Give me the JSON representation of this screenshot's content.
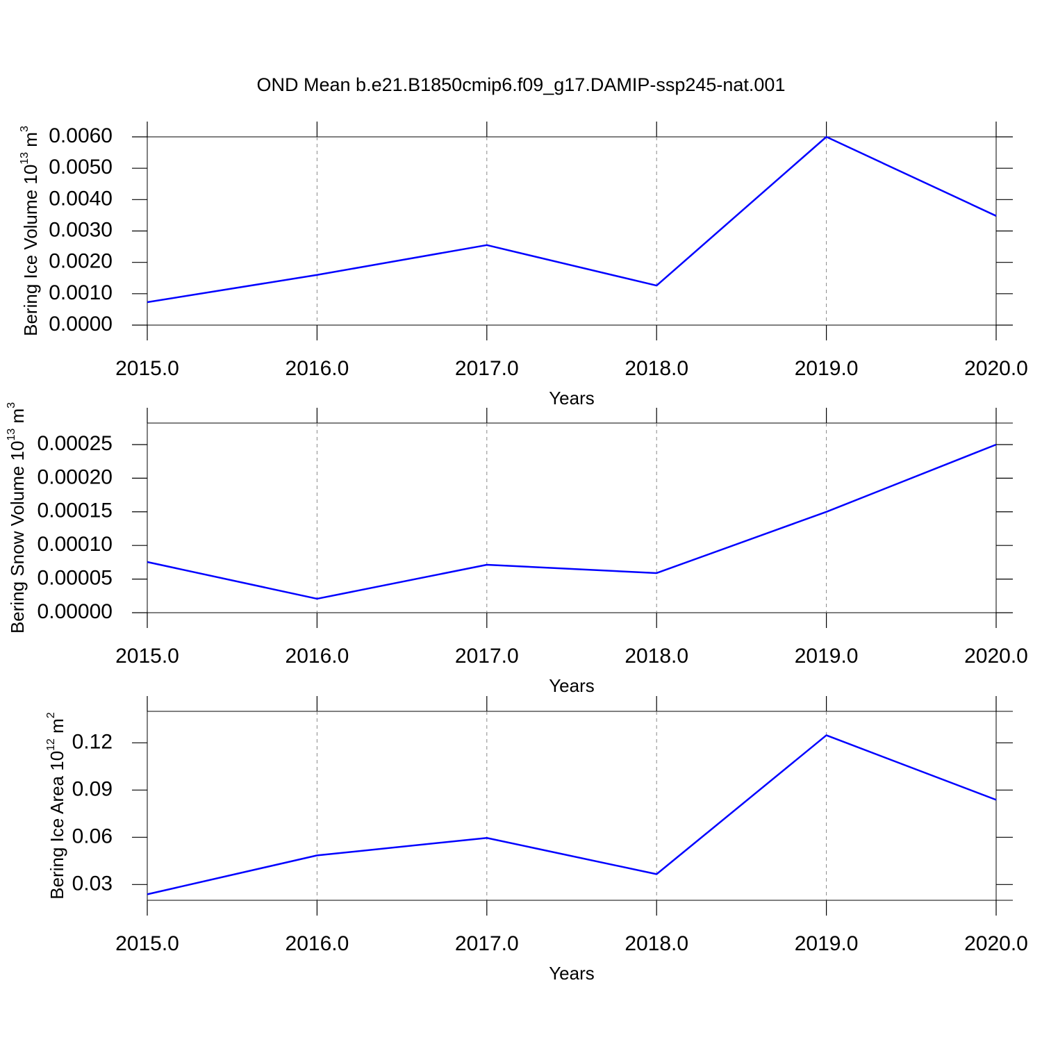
{
  "title": "OND Mean b.e21.B1850cmip6.f09_g17.DAMIP-ssp245-nat.001",
  "chart_data": [
    {
      "type": "line",
      "xlabel": "Years",
      "ylabel": [
        {
          "text": "Bering Ice Volume 10"
        },
        {
          "sup": "13"
        },
        {
          "text": " m"
        },
        {
          "sup": "3"
        }
      ],
      "x": [
        2015,
        2016,
        2017,
        2018,
        2019,
        2020
      ],
      "series": [
        {
          "color": "#0000ff",
          "values": [
            0.00073,
            0.0016,
            0.00255,
            0.00126,
            0.006,
            0.00348
          ]
        }
      ],
      "xlim": [
        2015,
        2020
      ],
      "ylim": [
        0,
        0.006
      ],
      "xticks": [
        {
          "value": 2015,
          "label": "2015.0"
        },
        {
          "value": 2016,
          "label": "2016.0"
        },
        {
          "value": 2017,
          "label": "2017.0"
        },
        {
          "value": 2018,
          "label": "2018.0"
        },
        {
          "value": 2019,
          "label": "2019.0"
        },
        {
          "value": 2020,
          "label": "2020.0"
        }
      ],
      "yticks": [
        {
          "value": 0,
          "label": "0.0000"
        },
        {
          "value": 0.001,
          "label": "0.0010"
        },
        {
          "value": 0.002,
          "label": "0.0020"
        },
        {
          "value": 0.003,
          "label": "0.0030"
        },
        {
          "value": 0.004,
          "label": "0.0040"
        },
        {
          "value": 0.005,
          "label": "0.0050"
        },
        {
          "value": 0.006,
          "label": "0.0060"
        }
      ],
      "grid": "x"
    },
    {
      "type": "line",
      "xlabel": "Years",
      "ylabel": [
        {
          "text": "Bering Snow Volume 10"
        },
        {
          "sup": "13"
        },
        {
          "text": " m"
        },
        {
          "sup": "3"
        }
      ],
      "x": [
        2015,
        2016,
        2017,
        2018,
        2019,
        2020
      ],
      "series": [
        {
          "color": "#0000ff",
          "values": [
            7.54e-05,
            2.07e-05,
            7.13e-05,
            5.89e-05,
            0.00015,
            0.00025
          ]
        }
      ],
      "xlim": [
        2015,
        2020
      ],
      "ylim": [
        0,
        0.000282
      ],
      "xticks": [
        {
          "value": 2015,
          "label": "2015.0"
        },
        {
          "value": 2016,
          "label": "2016.0"
        },
        {
          "value": 2017,
          "label": "2017.0"
        },
        {
          "value": 2018,
          "label": "2018.0"
        },
        {
          "value": 2019,
          "label": "2019.0"
        },
        {
          "value": 2020,
          "label": "2020.0"
        }
      ],
      "yticks": [
        {
          "value": 0,
          "label": "0.00000"
        },
        {
          "value": 5e-05,
          "label": "0.00005"
        },
        {
          "value": 0.0001,
          "label": "0.00010"
        },
        {
          "value": 0.00015,
          "label": "0.00015"
        },
        {
          "value": 0.0002,
          "label": "0.00020"
        },
        {
          "value": 0.00025,
          "label": "0.00025"
        }
      ],
      "grid": "x"
    },
    {
      "type": "line",
      "xlabel": "Years",
      "ylabel": [
        {
          "text": "Bering Ice Area 10"
        },
        {
          "sup": "12"
        },
        {
          "text": " m"
        },
        {
          "sup": "2"
        }
      ],
      "x": [
        2015,
        2016,
        2017,
        2018,
        2019,
        2020
      ],
      "series": [
        {
          "color": "#0000ff",
          "values": [
            0.0238,
            0.0485,
            0.0596,
            0.0366,
            0.1248,
            0.0838
          ]
        }
      ],
      "xlim": [
        2015,
        2020
      ],
      "ylim": [
        0.02,
        0.14
      ],
      "xticks": [
        {
          "value": 2015,
          "label": "2015.0"
        },
        {
          "value": 2016,
          "label": "2016.0"
        },
        {
          "value": 2017,
          "label": "2017.0"
        },
        {
          "value": 2018,
          "label": "2018.0"
        },
        {
          "value": 2019,
          "label": "2019.0"
        },
        {
          "value": 2020,
          "label": "2020.0"
        }
      ],
      "yticks": [
        0.03,
        0.06,
        0.09,
        0.12
      ],
      "grid": "x"
    }
  ]
}
